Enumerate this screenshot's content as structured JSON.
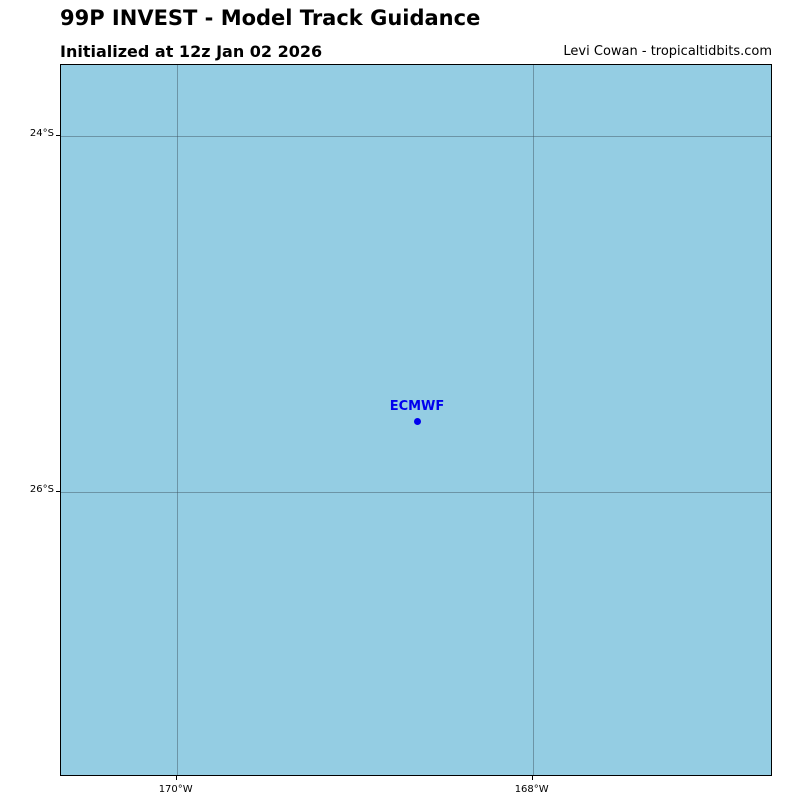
{
  "header": {
    "title": "99P INVEST - Model Track Guidance",
    "subtitle": "Initialized at 12z Jan 02 2026",
    "credit": "Levi Cowan - tropicaltidbits.com"
  },
  "map": {
    "ocean_color": "#94cde3",
    "lon_range": [
      -170.65,
      -166.65
    ],
    "lat_range": [
      -27.6,
      -23.6
    ],
    "lon_ticks": [
      {
        "value": -170,
        "label": "170°W"
      },
      {
        "value": -168,
        "label": "168°W"
      }
    ],
    "lat_ticks": [
      {
        "value": -24,
        "label": "24°S"
      },
      {
        "value": -26,
        "label": "26°S"
      }
    ],
    "models": [
      {
        "name": "ECMWF",
        "color": "#0000ee",
        "lon": -168.65,
        "lat": -25.6
      }
    ]
  }
}
